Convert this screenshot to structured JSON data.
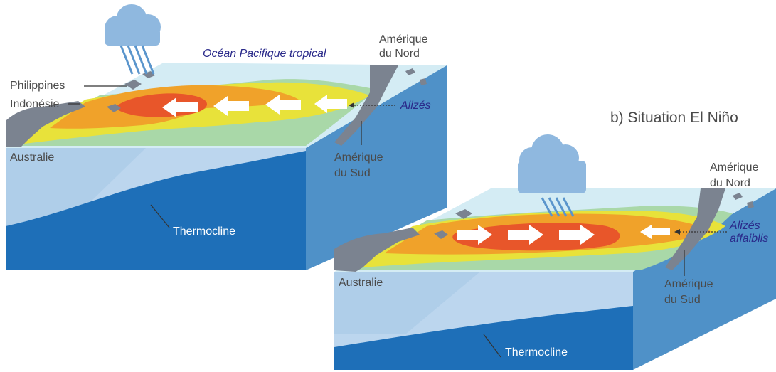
{
  "panel_a": {
    "ocean_label": "Océan Pacifique tropical",
    "philippines": "Philippines",
    "indonesie": "Indonésie",
    "amerique_nord_1": "Amérique",
    "amerique_nord_2": "du Nord",
    "alizes": "Alizés",
    "amerique_sud_1": "Amérique",
    "amerique_sud_2": "du Sud",
    "australie": "Australie",
    "thermocline": "Thermocline"
  },
  "panel_b": {
    "title": "b) Situation El Niño",
    "amerique_nord_1": "Amérique",
    "amerique_nord_2": "du Nord",
    "alizes_1": "Alizés",
    "alizes_2": "affaiblis",
    "amerique_sud_1": "Amérique",
    "amerique_sud_2": "du Sud",
    "australie": "Australie",
    "thermocline": "Thermocline"
  },
  "colors": {
    "warm_core": "#e8562a",
    "warm": "#f0a22a",
    "mid": "#f2c73a",
    "lukewarm": "#e8e23a",
    "cool": "#a9d8a8",
    "cold": "#d4ecf4",
    "land": "#7b8390",
    "side_front": "#b7d4ec",
    "side_right": "#4f91c8",
    "deep": "#1e6fb8",
    "cloud": "#8fb8df",
    "label_blue": "#2a2a8a"
  }
}
